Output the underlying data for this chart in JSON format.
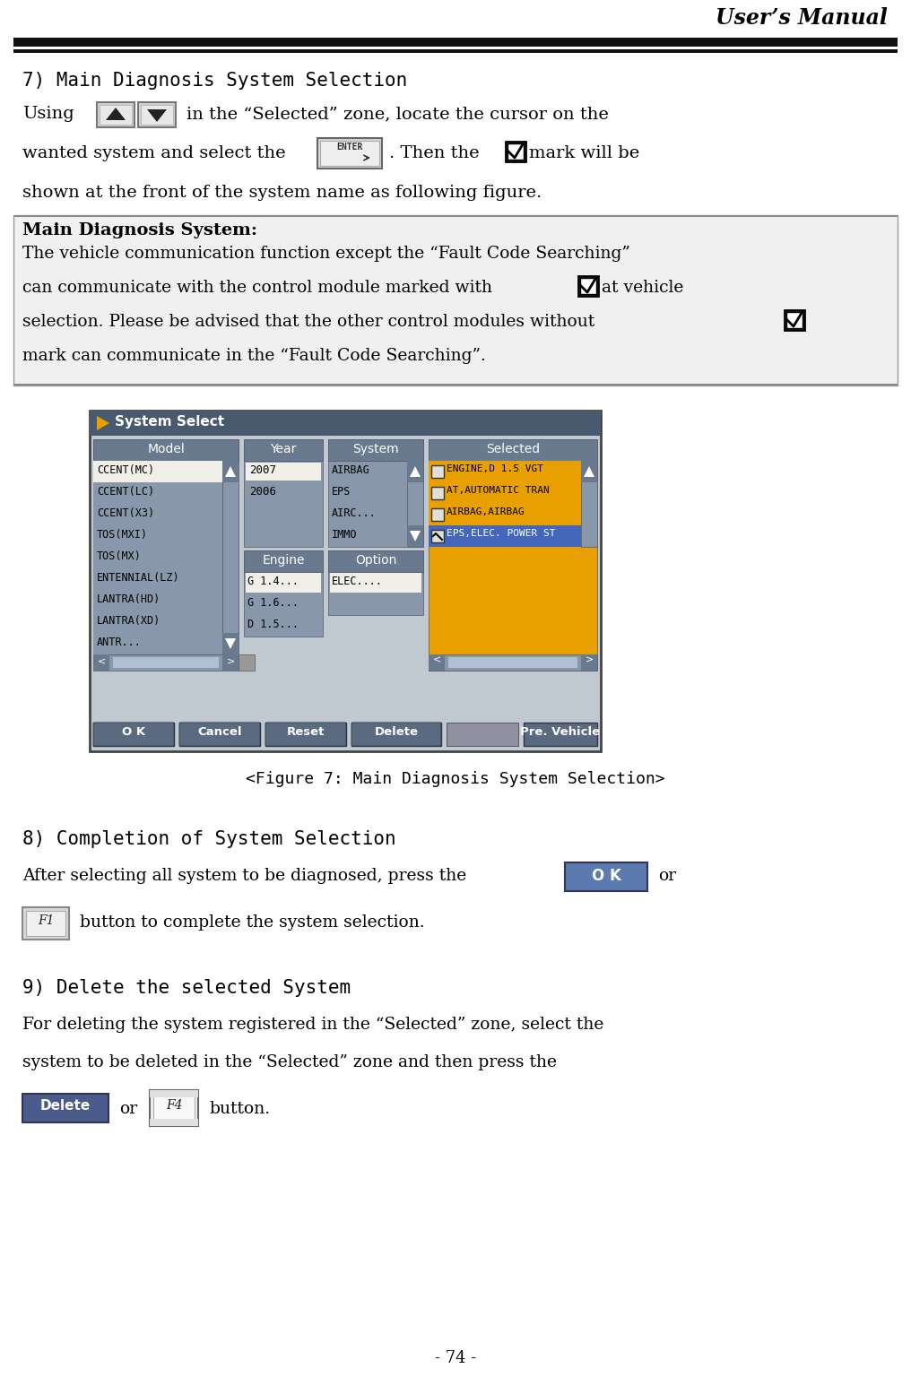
{
  "title": "User’s Manual",
  "page_number": "- 74 -",
  "background_color": "#ffffff",
  "section7_title": "7) Main Diagnosis System Selection",
  "section8_title": "8) Completion of System Selection",
  "section9_title": "9) Delete the selected System",
  "note_title": "Main Diagnosis System:",
  "figure_caption": "<Figure 7: Main Diagnosis System Selection>",
  "screen_title": "System Select",
  "screen_title_bg": "#4a5a6e",
  "col_header_bg": "#6a7a8e",
  "list_bg_gray": "#8090a0",
  "list_bg_white": "#f0efe8",
  "list_bg_orange": "#e8a000",
  "list_bg_blue_sel": "#4466bb",
  "button_bg": "#5a6a80",
  "ok_button_bg": "#5a7ab0",
  "delete_button_bg": "#4a5a8a",
  "scroll_light": "#a8b8c8",
  "scroll_dark": "#6a7a8e"
}
